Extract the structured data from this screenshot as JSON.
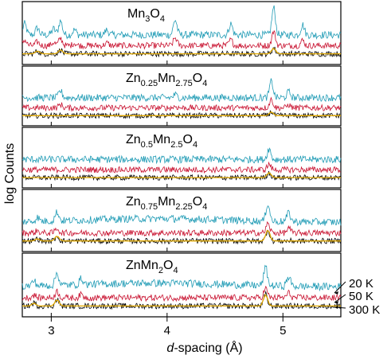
{
  "chart_data": {
    "type": "line",
    "xlabel_italic": "d",
    "xlabel_rest": "-spacing (Å)",
    "ylabel": "log Counts",
    "xlim": [
      2.75,
      5.5
    ],
    "x_ticks": [
      3,
      4,
      5
    ],
    "x_tick_labels": [
      "3",
      "4",
      "5"
    ],
    "grid": false,
    "legend_placement": "right",
    "series_styles": [
      {
        "name": "20 K",
        "color": "#1f9bb5"
      },
      {
        "name": "50 K",
        "color": "#c8102e"
      },
      {
        "name": "300 K",
        "color": "#000000"
      },
      {
        "name": "",
        "color": "#e0a800"
      }
    ],
    "panels": [
      {
        "label_parts": [
          {
            "t": "Mn"
          },
          {
            "t": "3",
            "sub": true
          },
          {
            "t": "O"
          },
          {
            "t": "4",
            "sub": true
          }
        ],
        "peaks": [
          {
            "d": 2.77,
            "h": 0.55
          },
          {
            "d": 2.88,
            "h": 0.35
          },
          {
            "d": 3.02,
            "h": 0.3
          },
          {
            "d": 3.08,
            "h": 0.7
          },
          {
            "d": 3.2,
            "h": 0.25
          },
          {
            "d": 3.48,
            "h": 0.25
          },
          {
            "d": 4.07,
            "h": 0.75
          },
          {
            "d": 4.55,
            "h": 0.55
          },
          {
            "d": 4.92,
            "h": 1.35
          },
          {
            "d": 5.17,
            "h": 0.5
          }
        ],
        "peaks_low": [
          {
            "d": 2.88,
            "h": 0.25
          },
          {
            "d": 3.08,
            "h": 0.35
          },
          {
            "d": 4.92,
            "h": 0.5
          }
        ]
      },
      {
        "label_parts": [
          {
            "t": "Zn"
          },
          {
            "t": "0.25",
            "sub": true
          },
          {
            "t": "Mn"
          },
          {
            "t": "2.75",
            "sub": true
          },
          {
            "t": "O"
          },
          {
            "t": "4",
            "sub": true
          }
        ],
        "peaks": [
          {
            "d": 3.08,
            "h": 0.35
          },
          {
            "d": 4.07,
            "h": 0.15
          },
          {
            "d": 4.9,
            "h": 0.85
          },
          {
            "d": 5.05,
            "h": 0.3
          }
        ],
        "peaks_low": [
          {
            "d": 4.9,
            "h": 0.35
          }
        ]
      },
      {
        "label_parts": [
          {
            "t": "Zn"
          },
          {
            "t": "0.5",
            "sub": true
          },
          {
            "t": "Mn"
          },
          {
            "t": "2.5",
            "sub": true
          },
          {
            "t": "O"
          },
          {
            "t": "4",
            "sub": true
          }
        ],
        "peaks": [
          {
            "d": 4.88,
            "h": 0.55
          }
        ],
        "peaks_low": [
          {
            "d": 4.88,
            "h": 0.45
          }
        ]
      },
      {
        "label_parts": [
          {
            "t": "Zn"
          },
          {
            "t": "0.75",
            "sub": true
          },
          {
            "t": "Mn"
          },
          {
            "t": "2.25",
            "sub": true
          },
          {
            "t": "O"
          },
          {
            "t": "4",
            "sub": true
          }
        ],
        "peaks": [
          {
            "d": 2.88,
            "h": 0.2
          },
          {
            "d": 3.05,
            "h": 0.45
          },
          {
            "d": 4.87,
            "h": 0.9
          },
          {
            "d": 5.05,
            "h": 0.45
          }
        ],
        "peaks_low": [
          {
            "d": 2.88,
            "h": 0.2
          },
          {
            "d": 3.05,
            "h": 0.45
          },
          {
            "d": 4.87,
            "h": 1.0
          }
        ]
      },
      {
        "label_parts": [
          {
            "t": "ZnMn"
          },
          {
            "t": "2",
            "sub": true
          },
          {
            "t": "O"
          },
          {
            "t": "4",
            "sub": true
          }
        ],
        "peaks": [
          {
            "d": 2.85,
            "h": 0.25
          },
          {
            "d": 3.05,
            "h": 0.6
          },
          {
            "d": 3.26,
            "h": 0.3
          },
          {
            "d": 4.85,
            "h": 0.9
          },
          {
            "d": 5.05,
            "h": 0.45
          }
        ],
        "peaks_low": [
          {
            "d": 2.85,
            "h": 0.25
          },
          {
            "d": 3.05,
            "h": 0.55
          },
          {
            "d": 4.85,
            "h": 1.0
          }
        ]
      }
    ],
    "legend": [
      "20 K",
      "50 K",
      "300 K"
    ]
  }
}
